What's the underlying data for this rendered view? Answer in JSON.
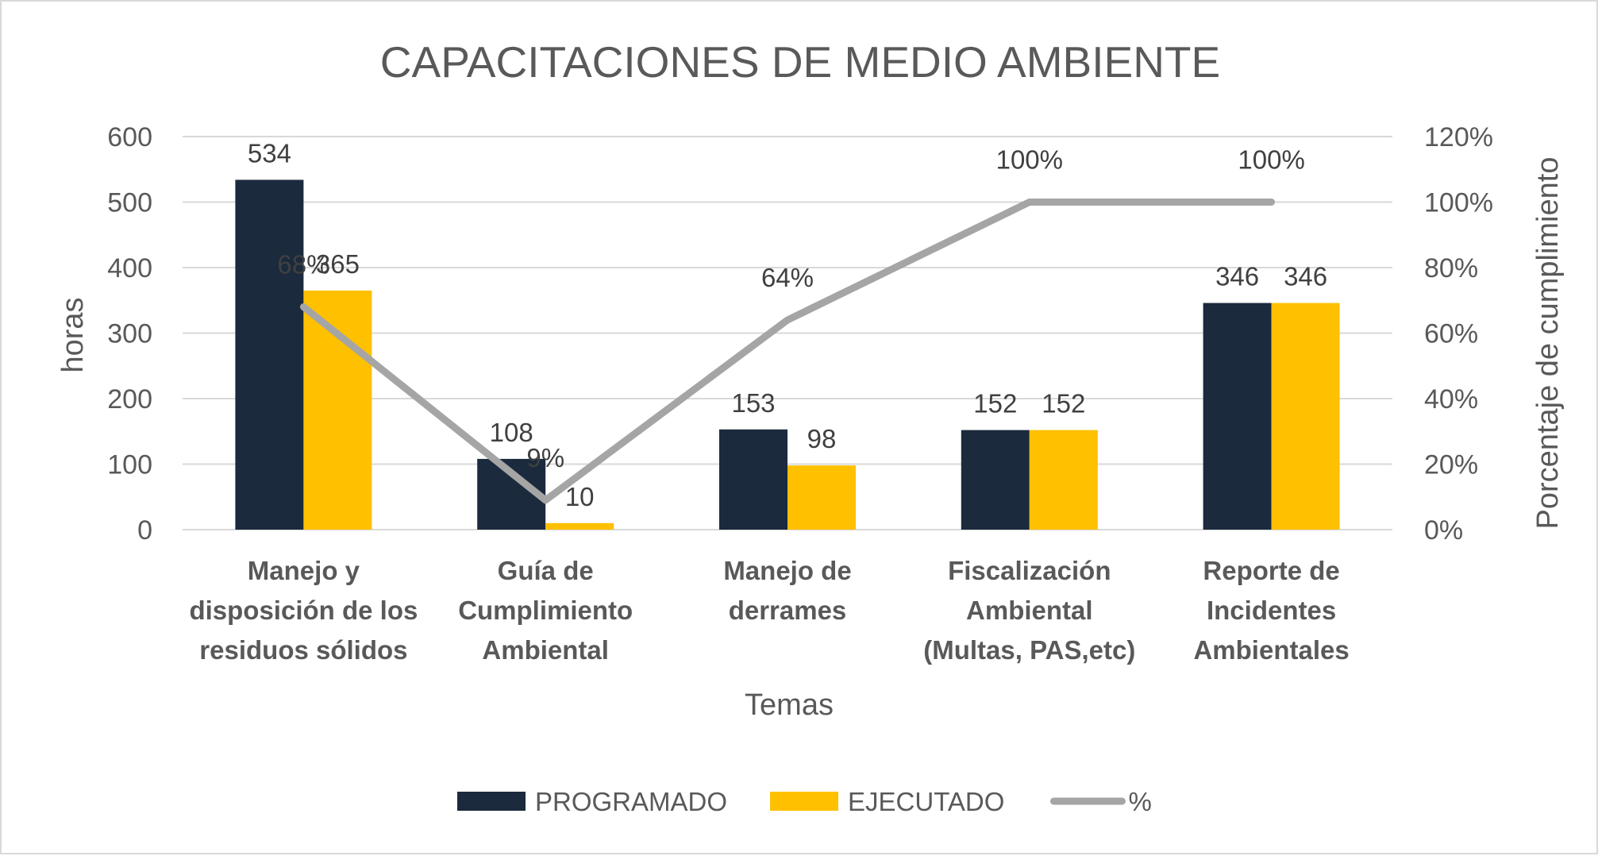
{
  "chart_data": {
    "type": "bar",
    "title": "CAPACITACIONES DE MEDIO AMBIENTE",
    "xlabel": "Temas",
    "ylabel": "horas",
    "y2label": "Porcentaje de cumplimiento",
    "ylim": [
      0,
      600
    ],
    "y2lim": [
      0,
      1.2
    ],
    "y_ticks": [
      "0",
      "100",
      "200",
      "300",
      "400",
      "500",
      "600"
    ],
    "y2_ticks": [
      "0%",
      "20%",
      "40%",
      "60%",
      "80%",
      "100%",
      "120%"
    ],
    "grid": true,
    "legend_position": "bottom",
    "categories": [
      [
        "Manejo y",
        "disposición de los",
        "residuos sólidos"
      ],
      [
        "Guía de",
        "Cumplimiento",
        "Ambiental"
      ],
      [
        "Manejo de",
        "derrames"
      ],
      [
        "Fiscalización",
        "Ambiental",
        "(Multas, PAS,etc)"
      ],
      [
        "Reporte de",
        "Incidentes",
        "Ambientales"
      ]
    ],
    "series": [
      {
        "name": "PROGRAMADO",
        "type": "bar",
        "color": "#1b2a3d",
        "values": [
          534,
          108,
          153,
          152,
          346
        ],
        "labels": [
          "534",
          "108",
          "153",
          "152",
          "346"
        ]
      },
      {
        "name": "EJECUTADO",
        "type": "bar",
        "color": "#ffc000",
        "values": [
          365,
          10,
          98,
          152,
          346
        ],
        "labels": [
          "365",
          "10",
          "98",
          "152",
          "346"
        ]
      },
      {
        "name": "%",
        "type": "line",
        "axis": "secondary",
        "color": "#a5a5a5",
        "values": [
          0.68,
          0.09,
          0.64,
          1.0,
          1.0
        ],
        "labels": [
          "68%",
          "9%",
          "64%",
          "100%",
          "100%"
        ]
      }
    ]
  }
}
